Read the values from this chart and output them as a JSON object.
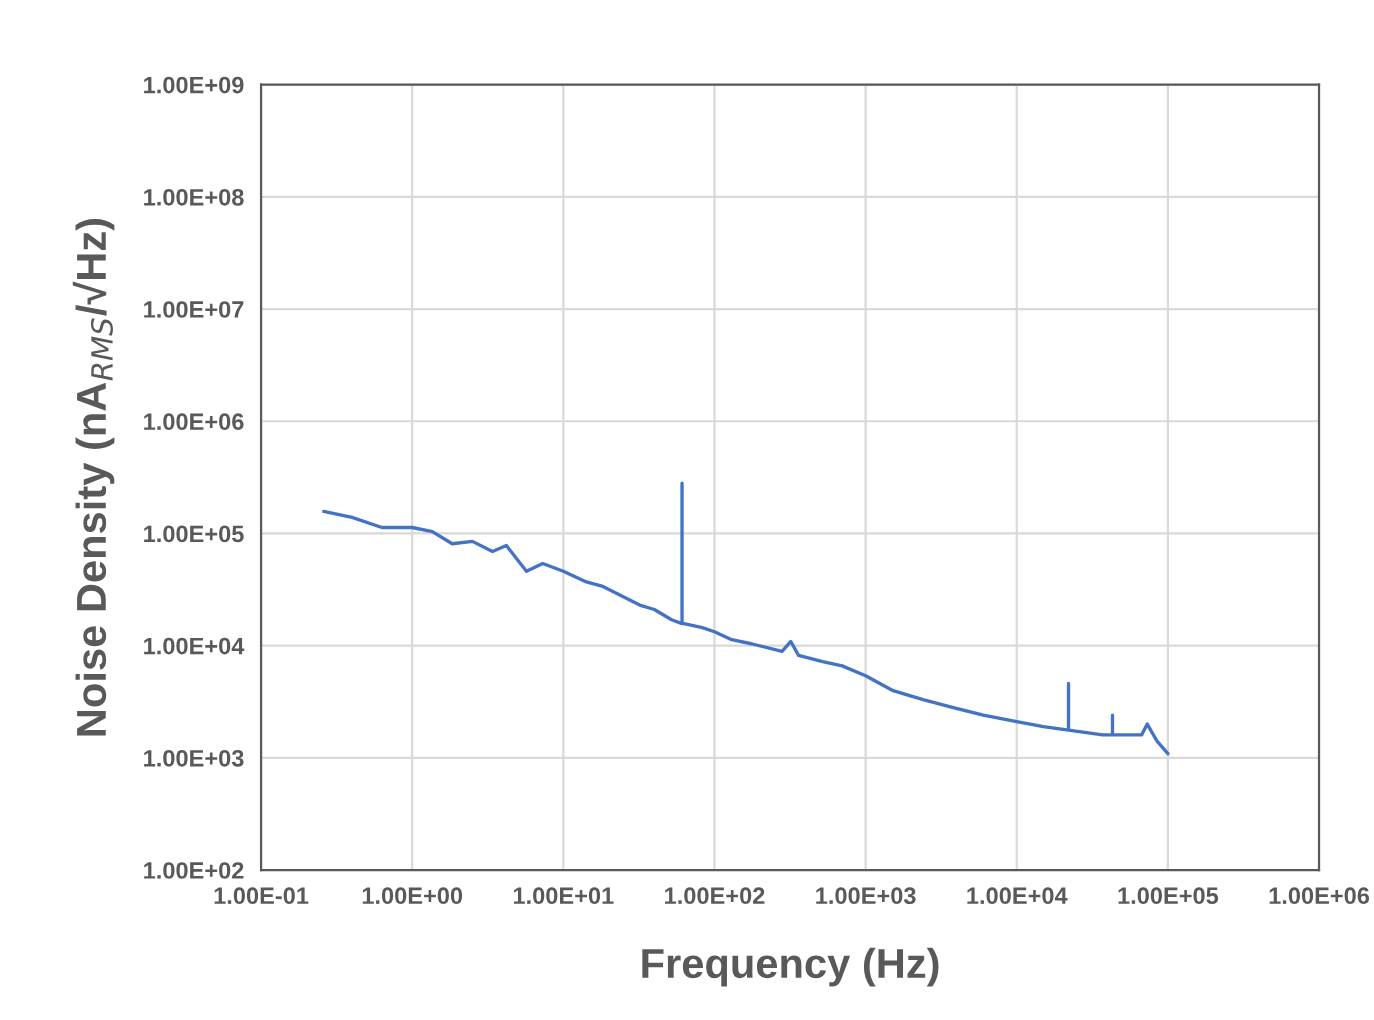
{
  "chart_data": {
    "type": "line",
    "xlabel": "Frequency (Hz)",
    "ylabel": "Noise Density (nA$_{RMS}$/√Hz)",
    "log": "xy",
    "grid": true,
    "marker": "none",
    "line_style": "solid",
    "xlim": [
      0.1,
      1000000
    ],
    "ylim": [
      100,
      1000000000
    ],
    "xticks": [
      {
        "value": 0.1,
        "label": "1.00E-01"
      },
      {
        "value": 1,
        "label": "1.00E+00"
      },
      {
        "value": 10,
        "label": "1.00E+01"
      },
      {
        "value": 100,
        "label": "1.00E+02"
      },
      {
        "value": 1000,
        "label": "1.00E+03"
      },
      {
        "value": 10000,
        "label": "1.00E+04"
      },
      {
        "value": 100000,
        "label": "1.00E+05"
      },
      {
        "value": 1000000,
        "label": "1.00E+06"
      }
    ],
    "yticks": [
      {
        "value": 100,
        "label": "1.00E+02"
      },
      {
        "value": 1000,
        "label": "1.00E+03"
      },
      {
        "value": 10000,
        "label": "1.00E+04"
      },
      {
        "value": 100000,
        "label": "1.00E+05"
      },
      {
        "value": 1000000,
        "label": "1.00E+06"
      },
      {
        "value": 10000000,
        "label": "1.00E+07"
      },
      {
        "value": 100000000,
        "label": "1.00E+08"
      },
      {
        "value": 1000000000,
        "label": "1.00E+09"
      }
    ],
    "series": [
      {
        "color": "#4472c4",
        "x": [
          0.26,
          0.4,
          0.63,
          1.0,
          1.36,
          1.84,
          2.5,
          3.4,
          4.2,
          5.7,
          7.3,
          10,
          14.2,
          18,
          24,
          32,
          40,
          52,
          61,
          61,
          61,
          63,
          83,
          100,
          130,
          175,
          280,
          320,
          360,
          520,
          700,
          1000,
          1500,
          2400,
          3800,
          6000,
          10000,
          15000,
          22000,
          22000,
          22000,
          37000,
          43000,
          43000,
          43000,
          67000,
          73000,
          85000,
          100000
        ],
        "values": [
          157000,
          139000,
          113000,
          113000,
          104000,
          81000,
          85000,
          69000,
          78000,
          46000,
          54000,
          46000,
          37000,
          34000,
          28000,
          23000,
          21000,
          17000,
          15700,
          280000,
          15700,
          15700,
          14500,
          13300,
          11300,
          10400,
          8900,
          10900,
          8200,
          7200,
          6600,
          5400,
          4000,
          3300,
          2800,
          2400,
          2100,
          1900,
          1770,
          4600,
          1770,
          1600,
          1600,
          2400,
          1600,
          1600,
          2000,
          1400,
          1090
        ]
      }
    ]
  }
}
